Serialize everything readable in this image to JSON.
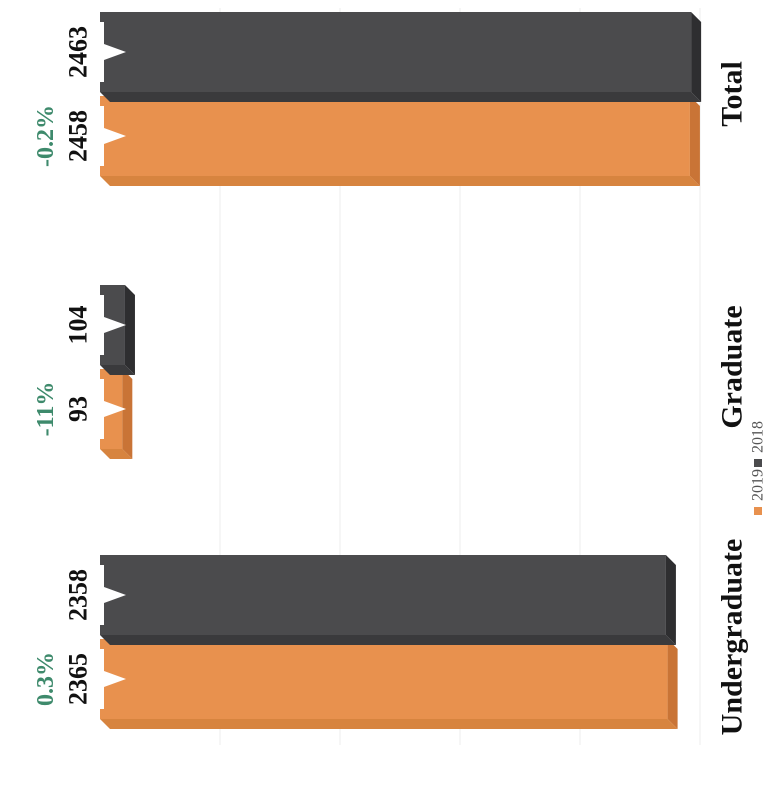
{
  "chart_data": {
    "type": "bar",
    "orientation": "horizontal",
    "rotated_page": true,
    "categories": [
      "Undergraduate",
      "Graduate",
      "Total"
    ],
    "series": [
      {
        "name": "2019",
        "values": [
          2365,
          93,
          2458
        ],
        "color": "#e8914e"
      },
      {
        "name": "2018",
        "values": [
          2358,
          104,
          2463
        ],
        "color": "#4b4b4d"
      }
    ],
    "value_labels": {
      "2019": [
        "2365",
        "93",
        "2458"
      ],
      "2018": [
        "2358",
        "104",
        "2463"
      ]
    },
    "change_labels": [
      "0.3%",
      "-11%",
      "-0.2%"
    ],
    "change_color": "#3e8a6c",
    "legend": [
      "2019",
      "2018"
    ],
    "legend_position": "bottom",
    "grid": true,
    "xlim": [
      0,
      2500
    ]
  }
}
